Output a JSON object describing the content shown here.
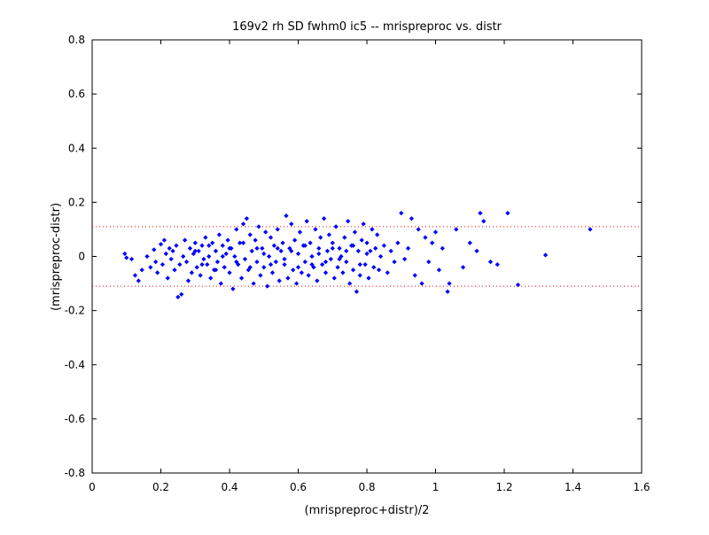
{
  "chart_data": {
    "type": "scatter",
    "title": "169v2 rh SD fwhm0 ic5 -- mrispreproc vs. distr",
    "xlabel": "(mrispreproc+distr)/2",
    "ylabel": "(mrispreproc-distr)",
    "xlim": [
      0,
      1.6
    ],
    "ylim": [
      -0.8,
      0.8
    ],
    "x_ticks": [
      "0",
      "0.2",
      "0.4",
      "0.6",
      "0.8",
      "1",
      "1.2",
      "1.4",
      "1.6"
    ],
    "y_ticks": [
      "-0.8",
      "-0.6",
      "-0.4",
      "-0.2",
      "0",
      "0.2",
      "0.4",
      "0.6",
      "0.8"
    ],
    "grid": false,
    "marker_color": "#0000ff",
    "reference_line_color": "#ff0000",
    "reference_lines_y": [
      0.11,
      -0.11
    ],
    "series": [
      {
        "values_description": "",
        "points": [
          [
            0.095,
            0.01
          ],
          [
            0.1,
            -0.005
          ],
          [
            0.115,
            -0.01
          ],
          [
            0.125,
            -0.07
          ],
          [
            0.135,
            -0.09
          ],
          [
            0.145,
            -0.05
          ],
          [
            0.16,
            0.0
          ],
          [
            0.17,
            -0.04
          ],
          [
            0.18,
            0.025
          ],
          [
            0.185,
            -0.02
          ],
          [
            0.19,
            -0.06
          ],
          [
            0.2,
            0.045
          ],
          [
            0.205,
            -0.03
          ],
          [
            0.21,
            0.06
          ],
          [
            0.215,
            0.01
          ],
          [
            0.22,
            -0.08
          ],
          [
            0.225,
            0.03
          ],
          [
            0.23,
            -0.01
          ],
          [
            0.235,
            0.02
          ],
          [
            0.24,
            -0.05
          ],
          [
            0.245,
            0.04
          ],
          [
            0.25,
            -0.15
          ],
          [
            0.255,
            -0.03
          ],
          [
            0.26,
            -0.14
          ],
          [
            0.265,
            0.0
          ],
          [
            0.27,
            0.06
          ],
          [
            0.275,
            -0.02
          ],
          [
            0.28,
            -0.09
          ],
          [
            0.285,
            0.03
          ],
          [
            0.29,
            -0.06
          ],
          [
            0.295,
            0.01
          ],
          [
            0.3,
            0.05
          ],
          [
            0.305,
            -0.04
          ],
          [
            0.31,
            0.02
          ],
          [
            0.315,
            -0.07
          ],
          [
            0.32,
            0.04
          ],
          [
            0.325,
            -0.01
          ],
          [
            0.33,
            0.07
          ],
          [
            0.335,
            -0.03
          ],
          [
            0.34,
            0.0
          ],
          [
            0.345,
            -0.08
          ],
          [
            0.35,
            0.05
          ],
          [
            0.355,
            -0.05
          ],
          [
            0.36,
            0.02
          ],
          [
            0.365,
            -0.02
          ],
          [
            0.37,
            0.08
          ],
          [
            0.375,
            -0.1
          ],
          [
            0.38,
            0.04
          ],
          [
            0.385,
            -0.04
          ],
          [
            0.39,
            0.01
          ],
          [
            0.395,
            0.06
          ],
          [
            0.4,
            -0.06
          ],
          [
            0.405,
            0.03
          ],
          [
            0.41,
            -0.12
          ],
          [
            0.415,
            0.0
          ],
          [
            0.42,
            0.1
          ],
          [
            0.425,
            -0.03
          ],
          [
            0.43,
            0.05
          ],
          [
            0.435,
            -0.08
          ],
          [
            0.44,
            0.12
          ],
          [
            0.445,
            -0.01
          ],
          [
            0.45,
            0.14
          ],
          [
            0.455,
            -0.05
          ],
          [
            0.46,
            0.08
          ],
          [
            0.465,
            0.02
          ],
          [
            0.47,
            -0.1
          ],
          [
            0.475,
            0.06
          ],
          [
            0.48,
            -0.02
          ],
          [
            0.485,
            0.11
          ],
          [
            0.49,
            -0.07
          ],
          [
            0.495,
            0.03
          ],
          [
            0.5,
            -0.04
          ],
          [
            0.505,
            0.09
          ],
          [
            0.51,
            -0.11
          ],
          [
            0.515,
            0.0
          ],
          [
            0.52,
            0.07
          ],
          [
            0.525,
            -0.06
          ],
          [
            0.53,
            0.04
          ],
          [
            0.535,
            -0.02
          ],
          [
            0.54,
            0.1
          ],
          [
            0.545,
            -0.09
          ],
          [
            0.55,
            0.02
          ],
          [
            0.555,
            0.05
          ],
          [
            0.56,
            -0.03
          ],
          [
            0.565,
            0.15
          ],
          [
            0.57,
            -0.08
          ],
          [
            0.575,
            0.03
          ],
          [
            0.58,
            0.12
          ],
          [
            0.585,
            -0.05
          ],
          [
            0.59,
            0.06
          ],
          [
            0.595,
            -0.1
          ],
          [
            0.6,
            0.01
          ],
          [
            0.605,
            0.09
          ],
          [
            0.61,
            -0.06
          ],
          [
            0.615,
            0.04
          ],
          [
            0.62,
            -0.02
          ],
          [
            0.625,
            0.13
          ],
          [
            0.63,
            -0.07
          ],
          [
            0.635,
            0.05
          ],
          [
            0.64,
            0.0
          ],
          [
            0.645,
            -0.04
          ],
          [
            0.65,
            0.1
          ],
          [
            0.655,
            -0.09
          ],
          [
            0.66,
            0.03
          ],
          [
            0.665,
            0.07
          ],
          [
            0.67,
            -0.03
          ],
          [
            0.675,
            0.14
          ],
          [
            0.68,
            -0.06
          ],
          [
            0.685,
            0.02
          ],
          [
            0.69,
            0.08
          ],
          [
            0.695,
            -0.01
          ],
          [
            0.7,
            0.05
          ],
          [
            0.705,
            -0.08
          ],
          [
            0.71,
            0.11
          ],
          [
            0.715,
            -0.04
          ],
          [
            0.72,
            0.03
          ],
          [
            0.725,
            0.0
          ],
          [
            0.73,
            -0.06
          ],
          [
            0.735,
            0.07
          ],
          [
            0.74,
            -0.02
          ],
          [
            0.745,
            0.13
          ],
          [
            0.75,
            -0.1
          ],
          [
            0.755,
            0.04
          ],
          [
            0.76,
            -0.05
          ],
          [
            0.765,
            0.09
          ],
          [
            0.77,
            -0.13
          ],
          [
            0.775,
            0.02
          ],
          [
            0.78,
            -0.07
          ],
          [
            0.785,
            0.06
          ],
          [
            0.79,
            0.12
          ],
          [
            0.795,
            -0.03
          ],
          [
            0.8,
            0.05
          ],
          [
            0.805,
            -0.08
          ],
          [
            0.81,
            0.02
          ],
          [
            0.815,
            0.1
          ],
          [
            0.82,
            -0.04
          ],
          [
            0.825,
            0.03
          ],
          [
            0.83,
            0.08
          ],
          [
            0.835,
            -0.05
          ],
          [
            0.84,
            0.0
          ],
          [
            0.85,
            0.04
          ],
          [
            0.86,
            -0.06
          ],
          [
            0.87,
            0.02
          ],
          [
            0.88,
            -0.02
          ],
          [
            0.89,
            0.05
          ],
          [
            0.9,
            0.16
          ],
          [
            0.91,
            -0.01
          ],
          [
            0.92,
            0.03
          ],
          [
            0.93,
            0.14
          ],
          [
            0.94,
            -0.07
          ],
          [
            0.95,
            0.1
          ],
          [
            0.96,
            -0.1
          ],
          [
            0.97,
            0.07
          ],
          [
            0.98,
            -0.02
          ],
          [
            0.99,
            0.05
          ],
          [
            1.0,
            0.09
          ],
          [
            1.01,
            -0.05
          ],
          [
            1.02,
            0.03
          ],
          [
            1.035,
            -0.13
          ],
          [
            1.04,
            -0.1
          ],
          [
            1.06,
            0.1
          ],
          [
            1.08,
            -0.04
          ],
          [
            1.1,
            0.05
          ],
          [
            1.12,
            0.02
          ],
          [
            1.13,
            0.16
          ],
          [
            1.14,
            0.13
          ],
          [
            1.16,
            -0.02
          ],
          [
            1.18,
            -0.03
          ],
          [
            1.21,
            0.16
          ],
          [
            1.24,
            -0.105
          ],
          [
            1.32,
            0.005
          ],
          [
            1.45,
            0.1
          ],
          [
            0.3,
            0.02
          ],
          [
            0.32,
            -0.03
          ],
          [
            0.34,
            0.04
          ],
          [
            0.36,
            -0.05
          ],
          [
            0.38,
            0.0
          ],
          [
            0.4,
            0.03
          ],
          [
            0.42,
            -0.02
          ],
          [
            0.44,
            0.05
          ],
          [
            0.46,
            -0.04
          ],
          [
            0.48,
            0.03
          ],
          [
            0.5,
            0.01
          ],
          [
            0.52,
            -0.03
          ],
          [
            0.54,
            0.03
          ],
          [
            0.56,
            -0.01
          ],
          [
            0.58,
            0.02
          ],
          [
            0.6,
            -0.04
          ],
          [
            0.62,
            0.04
          ],
          [
            0.64,
            -0.03
          ],
          [
            0.66,
            0.01
          ],
          [
            0.68,
            -0.02
          ],
          [
            0.7,
            0.03
          ],
          [
            0.72,
            -0.01
          ],
          [
            0.74,
            0.02
          ],
          [
            0.76,
            0.04
          ],
          [
            0.78,
            -0.03
          ],
          [
            0.8,
            0.01
          ]
        ]
      }
    ]
  }
}
